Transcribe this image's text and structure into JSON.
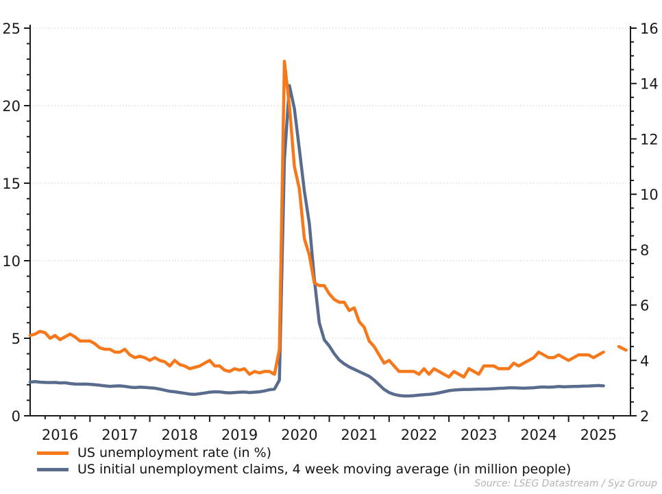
{
  "chart_data": {
    "type": "line",
    "title": "",
    "source_note": "Source: LSEG Datastream / Syz Group",
    "x_axis": {
      "start_year": 2016,
      "end_year": 2026,
      "year_labels": [
        "2016",
        "2017",
        "2018",
        "2019",
        "2020",
        "2021",
        "2022",
        "2023",
        "2024",
        "2025"
      ],
      "minor_tick": "quarterly"
    },
    "left_axis": {
      "range": [
        0,
        25
      ],
      "major_ticks": [
        0,
        5,
        10,
        15,
        20,
        25
      ],
      "minor_step": 1
    },
    "right_axis": {
      "range": [
        2,
        16
      ],
      "major_ticks": [
        2,
        4,
        6,
        8,
        10,
        12,
        14,
        16
      ],
      "minor_step": 0.5
    },
    "gridlines_at_left_values": [
      5,
      10,
      15,
      20,
      25
    ],
    "grid": "dotted horizontal",
    "legend_position": "bottom-left",
    "colors": {
      "axis": "#1a1a1a",
      "grid": "#c9c9c9",
      "unemployment_rate": "#f6781b",
      "initial_claims": "#5a6c8e",
      "source_text": "#b4b4b4"
    },
    "series": [
      {
        "name": "US unemployment rate (in %)",
        "axis": "right",
        "color": "#f6781b",
        "x_start": 2016.0,
        "x_step_years": 0.083333,
        "values": [
          4.9,
          4.95,
          5.05,
          5.0,
          4.8,
          4.9,
          4.75,
          4.85,
          4.95,
          4.85,
          4.7,
          4.7,
          4.7,
          4.6,
          4.45,
          4.4,
          4.4,
          4.3,
          4.3,
          4.4,
          4.2,
          4.1,
          4.15,
          4.1,
          4.0,
          4.1,
          4.0,
          3.95,
          3.8,
          4.0,
          3.85,
          3.8,
          3.7,
          3.75,
          3.8,
          3.9,
          4.0,
          3.8,
          3.8,
          3.65,
          3.6,
          3.7,
          3.65,
          3.7,
          3.5,
          3.6,
          3.55,
          3.6,
          3.6,
          3.5,
          4.4,
          14.8,
          13.2,
          11.0,
          10.2,
          8.4,
          7.8,
          6.8,
          6.7,
          6.7,
          6.4,
          6.2,
          6.1,
          6.1,
          5.8,
          5.9,
          5.4,
          5.2,
          4.7,
          4.5,
          4.2,
          3.9,
          4.0,
          3.8,
          3.6,
          3.6,
          3.6,
          3.6,
          3.5,
          3.7,
          3.5,
          3.7,
          3.6,
          3.5,
          3.4,
          3.6,
          3.5,
          3.4,
          3.7,
          3.6,
          3.5,
          3.8,
          3.8,
          3.8,
          3.7,
          3.7,
          3.7,
          3.9,
          3.8,
          3.9,
          4.0,
          4.1,
          4.3,
          4.2,
          4.1,
          4.1,
          4.2,
          4.1,
          4.0,
          4.1,
          4.2,
          4.2,
          4.2,
          4.1,
          4.2,
          4.3
        ],
        "dash_segment": {
          "x": [
            2025.84,
            2025.96
          ],
          "y": [
            4.5,
            4.37
          ]
        }
      },
      {
        "name": "US initial unemployment claims, 4 week moving average (in million people)",
        "axis": "left",
        "color": "#5a6c8e",
        "x_start": 2016.0,
        "x_step_years": 0.083333,
        "values": [
          2.18,
          2.2,
          2.17,
          2.15,
          2.14,
          2.15,
          2.12,
          2.13,
          2.08,
          2.05,
          2.04,
          2.05,
          2.03,
          2.0,
          1.97,
          1.93,
          1.9,
          1.92,
          1.93,
          1.9,
          1.85,
          1.82,
          1.85,
          1.83,
          1.8,
          1.78,
          1.72,
          1.65,
          1.58,
          1.55,
          1.5,
          1.45,
          1.4,
          1.38,
          1.42,
          1.47,
          1.52,
          1.55,
          1.54,
          1.5,
          1.48,
          1.5,
          1.52,
          1.53,
          1.5,
          1.52,
          1.55,
          1.6,
          1.68,
          1.72,
          2.3,
          16.5,
          21.3,
          19.8,
          17.2,
          14.5,
          12.4,
          8.8,
          6.0,
          4.9,
          4.5,
          4.0,
          3.6,
          3.35,
          3.15,
          3.0,
          2.85,
          2.7,
          2.55,
          2.3,
          2.0,
          1.7,
          1.5,
          1.38,
          1.31,
          1.28,
          1.28,
          1.3,
          1.33,
          1.36,
          1.38,
          1.42,
          1.48,
          1.55,
          1.62,
          1.66,
          1.68,
          1.7,
          1.7,
          1.71,
          1.72,
          1.72,
          1.73,
          1.75,
          1.77,
          1.78,
          1.8,
          1.8,
          1.79,
          1.78,
          1.79,
          1.81,
          1.84,
          1.86,
          1.84,
          1.86,
          1.89,
          1.87,
          1.88,
          1.89,
          1.9,
          1.91,
          1.92,
          1.94,
          1.95,
          1.93
        ]
      }
    ]
  }
}
